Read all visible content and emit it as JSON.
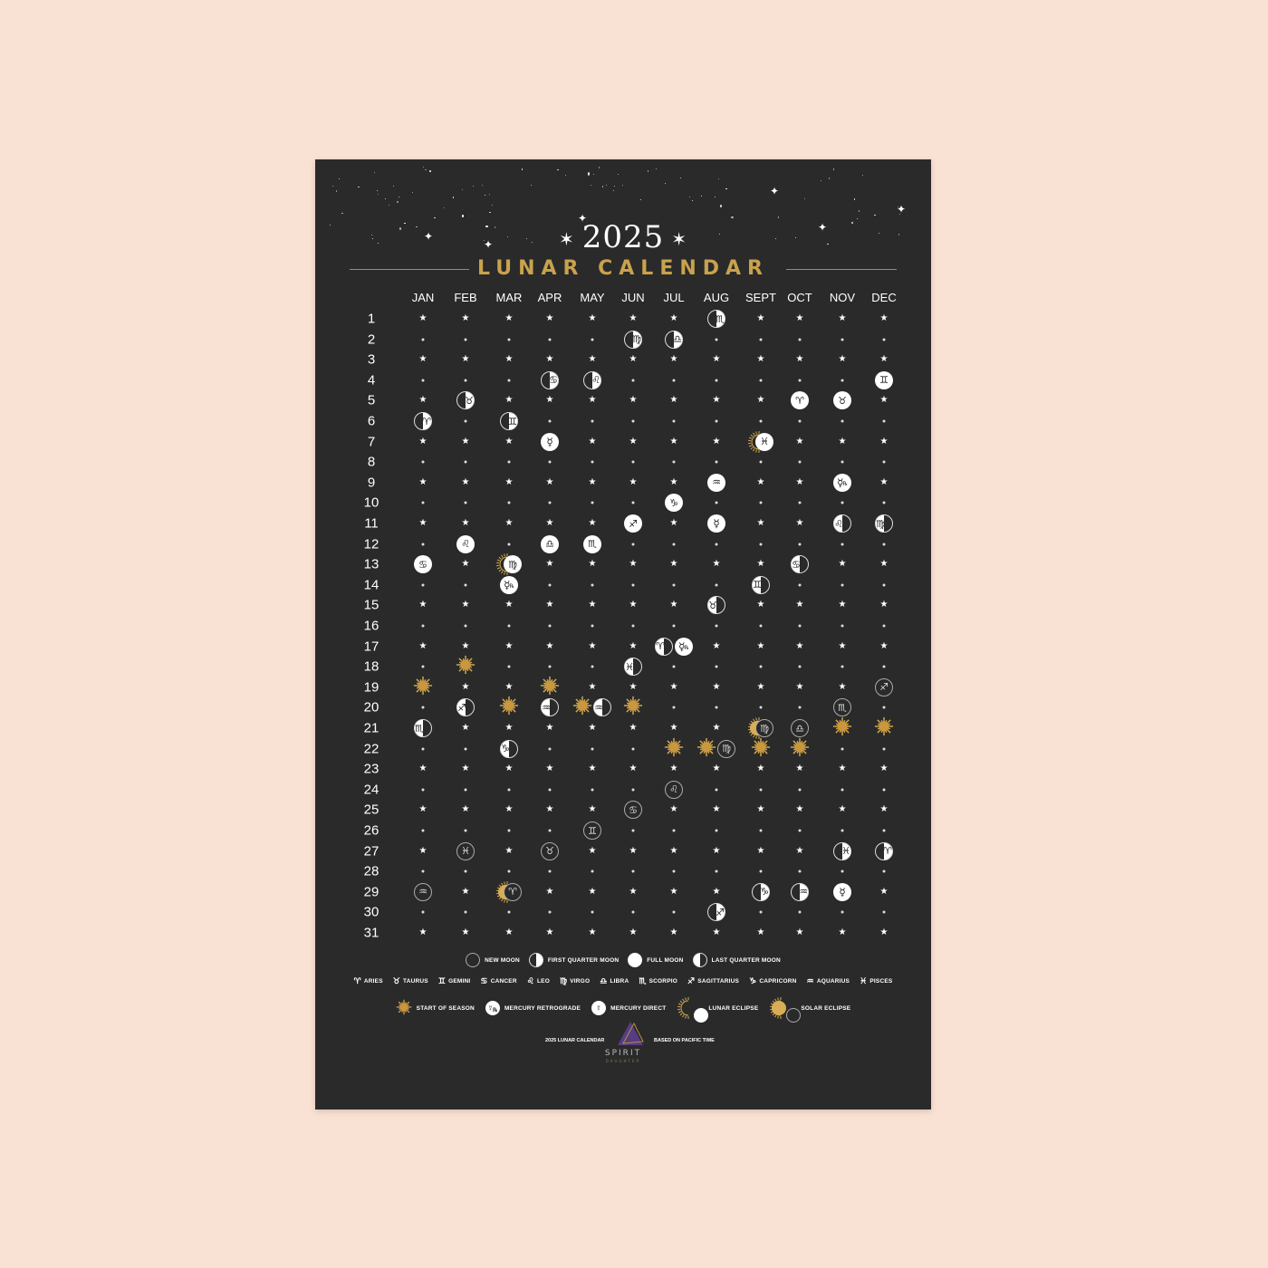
{
  "title": {
    "year": "2025",
    "name": "LUNAR CALENDAR",
    "spark": "✶"
  },
  "months": [
    "JAN",
    "FEB",
    "MAR",
    "APR",
    "MAY",
    "JUN",
    "JUL",
    "AUG",
    "SEPT",
    "OCT",
    "NOV",
    "DEC"
  ],
  "days": [
    1,
    2,
    3,
    4,
    5,
    6,
    7,
    8,
    9,
    10,
    11,
    12,
    13,
    14,
    15,
    16,
    17,
    18,
    19,
    20,
    21,
    22,
    23,
    24,
    25,
    26,
    27,
    28,
    29,
    30,
    31
  ],
  "colors": {
    "background": "#f9e1d3",
    "poster": "#2a2a2a",
    "gold": "#c9a24d",
    "moon": "#ffffff"
  },
  "events": [
    {
      "month": 1,
      "day": 6,
      "type": "first-quarter",
      "sign": "aries"
    },
    {
      "month": 1,
      "day": 13,
      "type": "full",
      "sign": "cancer"
    },
    {
      "month": 1,
      "day": 19,
      "type": "season",
      "sign": "aquarius"
    },
    {
      "month": 1,
      "day": 21,
      "type": "last-quarter",
      "sign": "scorpio"
    },
    {
      "month": 1,
      "day": 29,
      "type": "new",
      "sign": "aquarius"
    },
    {
      "month": 2,
      "day": 5,
      "type": "first-quarter",
      "sign": "taurus"
    },
    {
      "month": 2,
      "day": 12,
      "type": "full",
      "sign": "leo"
    },
    {
      "month": 2,
      "day": 18,
      "type": "season",
      "sign": "pisces"
    },
    {
      "month": 2,
      "day": 20,
      "type": "last-quarter",
      "sign": "sagittarius"
    },
    {
      "month": 2,
      "day": 27,
      "type": "new",
      "sign": "pisces"
    },
    {
      "month": 3,
      "day": 6,
      "type": "first-quarter",
      "sign": "gemini"
    },
    {
      "month": 3,
      "day": 13,
      "type": "lunar-eclipse",
      "sign": "virgo"
    },
    {
      "month": 3,
      "day": 14,
      "type": "mercury-retrograde",
      "sign": ""
    },
    {
      "month": 3,
      "day": 20,
      "type": "season",
      "sign": "aries"
    },
    {
      "month": 3,
      "day": 22,
      "type": "last-quarter",
      "sign": "capricorn"
    },
    {
      "month": 3,
      "day": 29,
      "type": "solar-eclipse",
      "sign": "aries"
    },
    {
      "month": 4,
      "day": 4,
      "type": "first-quarter",
      "sign": "cancer"
    },
    {
      "month": 4,
      "day": 7,
      "type": "mercury-direct",
      "sign": ""
    },
    {
      "month": 4,
      "day": 12,
      "type": "full",
      "sign": "libra"
    },
    {
      "month": 4,
      "day": 19,
      "type": "season",
      "sign": "taurus"
    },
    {
      "month": 4,
      "day": 20,
      "type": "last-quarter",
      "sign": "aquarius"
    },
    {
      "month": 4,
      "day": 27,
      "type": "new",
      "sign": "taurus"
    },
    {
      "month": 5,
      "day": 4,
      "type": "first-quarter",
      "sign": "leo"
    },
    {
      "month": 5,
      "day": 12,
      "type": "full",
      "sign": "scorpio"
    },
    {
      "month": 5,
      "day": 20,
      "type": "season",
      "sign": "gemini",
      "offset": -1
    },
    {
      "month": 5,
      "day": 20,
      "type": "last-quarter",
      "sign": "aquarius",
      "offset": 1
    },
    {
      "month": 5,
      "day": 26,
      "type": "new",
      "sign": "gemini"
    },
    {
      "month": 6,
      "day": 2,
      "type": "first-quarter",
      "sign": "virgo"
    },
    {
      "month": 6,
      "day": 11,
      "type": "full",
      "sign": "sagittarius"
    },
    {
      "month": 6,
      "day": 18,
      "type": "last-quarter",
      "sign": "pisces"
    },
    {
      "month": 6,
      "day": 20,
      "type": "season",
      "sign": "cancer"
    },
    {
      "month": 6,
      "day": 25,
      "type": "new",
      "sign": "cancer"
    },
    {
      "month": 7,
      "day": 2,
      "type": "first-quarter",
      "sign": "libra"
    },
    {
      "month": 7,
      "day": 10,
      "type": "full",
      "sign": "capricorn"
    },
    {
      "month": 7,
      "day": 17,
      "type": "last-quarter",
      "sign": "aries",
      "offset": -1
    },
    {
      "month": 7,
      "day": 17,
      "type": "mercury-retrograde",
      "sign": "",
      "offset": 1
    },
    {
      "month": 7,
      "day": 22,
      "type": "season",
      "sign": "leo"
    },
    {
      "month": 7,
      "day": 24,
      "type": "new",
      "sign": "leo"
    },
    {
      "month": 8,
      "day": 1,
      "type": "first-quarter",
      "sign": "scorpio"
    },
    {
      "month": 8,
      "day": 9,
      "type": "full",
      "sign": "aquarius"
    },
    {
      "month": 8,
      "day": 11,
      "type": "mercury-direct",
      "sign": ""
    },
    {
      "month": 8,
      "day": 15,
      "type": "last-quarter",
      "sign": "taurus"
    },
    {
      "month": 8,
      "day": 22,
      "type": "season",
      "sign": "virgo",
      "offset": -1
    },
    {
      "month": 8,
      "day": 22,
      "type": "new",
      "sign": "virgo",
      "offset": 1
    },
    {
      "month": 8,
      "day": 30,
      "type": "first-quarter",
      "sign": "sagittarius"
    },
    {
      "month": 9,
      "day": 7,
      "type": "lunar-eclipse",
      "sign": "pisces"
    },
    {
      "month": 9,
      "day": 14,
      "type": "last-quarter",
      "sign": "gemini"
    },
    {
      "month": 9,
      "day": 21,
      "type": "solar-eclipse",
      "sign": "virgo"
    },
    {
      "month": 9,
      "day": 22,
      "type": "season",
      "sign": "libra"
    },
    {
      "month": 9,
      "day": 29,
      "type": "first-quarter",
      "sign": "capricorn"
    },
    {
      "month": 10,
      "day": 5,
      "type": "full",
      "sign": "aries"
    },
    {
      "month": 10,
      "day": 13,
      "type": "last-quarter",
      "sign": "cancer"
    },
    {
      "month": 10,
      "day": 21,
      "type": "new",
      "sign": "libra"
    },
    {
      "month": 10,
      "day": 22,
      "type": "season",
      "sign": "scorpio"
    },
    {
      "month": 10,
      "day": 29,
      "type": "first-quarter",
      "sign": "aquarius"
    },
    {
      "month": 11,
      "day": 5,
      "type": "full",
      "sign": "taurus"
    },
    {
      "month": 11,
      "day": 9,
      "type": "mercury-retrograde",
      "sign": ""
    },
    {
      "month": 11,
      "day": 11,
      "type": "last-quarter",
      "sign": "leo"
    },
    {
      "month": 11,
      "day": 20,
      "type": "new",
      "sign": "scorpio"
    },
    {
      "month": 11,
      "day": 21,
      "type": "season",
      "sign": "sagittarius"
    },
    {
      "month": 11,
      "day": 27,
      "type": "first-quarter",
      "sign": "pisces"
    },
    {
      "month": 11,
      "day": 29,
      "type": "mercury-direct",
      "sign": ""
    },
    {
      "month": 12,
      "day": 4,
      "type": "full",
      "sign": "gemini"
    },
    {
      "month": 12,
      "day": 11,
      "type": "last-quarter",
      "sign": "virgo"
    },
    {
      "month": 12,
      "day": 19,
      "type": "new",
      "sign": "sagittarius"
    },
    {
      "month": 12,
      "day": 21,
      "type": "season",
      "sign": "capricorn"
    },
    {
      "month": 12,
      "day": 27,
      "type": "first-quarter",
      "sign": "aries"
    }
  ],
  "legend": {
    "phases": [
      {
        "type": "new",
        "label": "NEW MOON"
      },
      {
        "type": "first-quarter",
        "label": "FIRST QUARTER MOON"
      },
      {
        "type": "full",
        "label": "FULL MOON"
      },
      {
        "type": "last-quarter",
        "label": "LAST QUARTER MOON"
      }
    ],
    "signs": [
      {
        "sign": "aries",
        "label": "ARIES"
      },
      {
        "sign": "taurus",
        "label": "TAURUS"
      },
      {
        "sign": "gemini",
        "label": "GEMINI"
      },
      {
        "sign": "cancer",
        "label": "CANCER"
      },
      {
        "sign": "leo",
        "label": "LEO"
      },
      {
        "sign": "virgo",
        "label": "VIRGO"
      },
      {
        "sign": "libra",
        "label": "LIBRA"
      },
      {
        "sign": "scorpio",
        "label": "SCORPIO"
      },
      {
        "sign": "sagittarius",
        "label": "SAGITTARIUS"
      },
      {
        "sign": "capricorn",
        "label": "CAPRICORN"
      },
      {
        "sign": "aquarius",
        "label": "AQUARIUS"
      },
      {
        "sign": "pisces",
        "label": "PISCES"
      }
    ],
    "specials": [
      {
        "type": "season",
        "label": "START OF SEASON"
      },
      {
        "type": "mercury-retrograde",
        "label": "MERCURY RETROGRADE"
      },
      {
        "type": "mercury-direct",
        "label": "MERCURY DIRECT"
      },
      {
        "type": "lunar-eclipse",
        "label": "LUNAR ECLIPSE"
      },
      {
        "type": "solar-eclipse",
        "label": "SOLAR ECLIPSE"
      }
    ]
  },
  "footer": {
    "left": "2025 LUNAR CALENDAR",
    "right": "BASED ON PACIFIC TIME",
    "logo_name": "SPIRIT",
    "logo_sub": "DAUGHTER"
  }
}
